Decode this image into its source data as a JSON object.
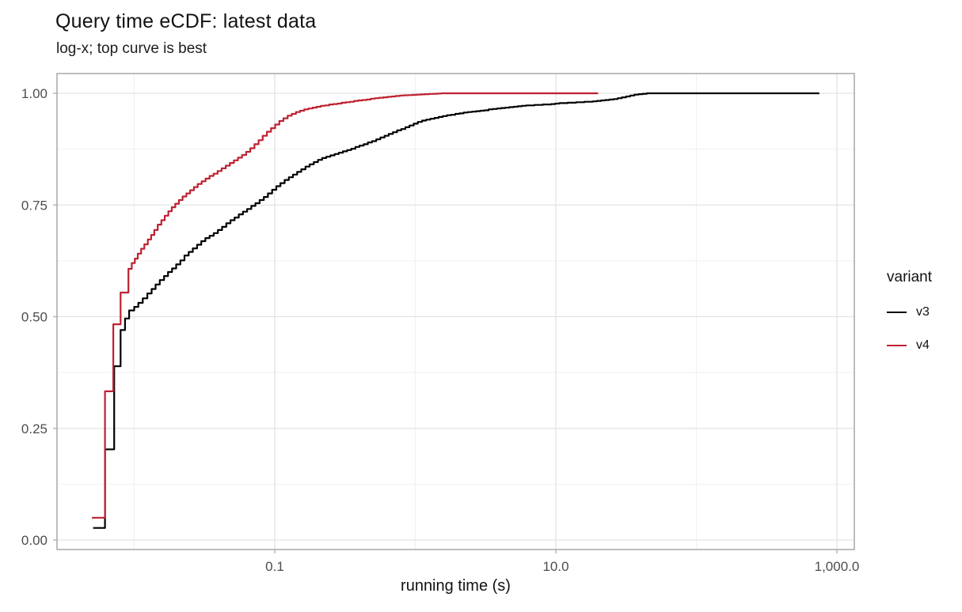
{
  "chart_data": {
    "type": "line",
    "subtype": "ecdf_step",
    "title": "Query time eCDF: latest data",
    "subtitle": "log-x; top curve is best",
    "xlabel": "running time (s)",
    "ylabel": "",
    "x_scale": "log10",
    "xlim": [
      0.00283,
      1330
    ],
    "ylim": [
      0,
      1
    ],
    "grid": true,
    "legend_position": "right",
    "x_axis": {
      "tick_labels": [
        "0.1",
        "10.0",
        "1,000.0"
      ],
      "tick_values": [
        0.1,
        10,
        1000
      ],
      "minor_values": [
        0.01,
        1,
        100
      ]
    },
    "y_axis": {
      "tick_labels": [
        "0.00",
        "0.25",
        "0.50",
        "0.75",
        "1.00"
      ],
      "tick_values": [
        0,
        0.25,
        0.5,
        0.75,
        1
      ],
      "minor_values": [
        0.125,
        0.375,
        0.625,
        0.875
      ]
    },
    "legend": {
      "title": "variant",
      "items": [
        {
          "label": "v3",
          "color": "#000000"
        },
        {
          "label": "v4",
          "color": "#BD2130"
        }
      ]
    },
    "colors": {
      "grid_major": "#E3E3E3",
      "grid_minor": "#F1F1F1",
      "panel_border": "#9A9A9A",
      "tick": "#B3B3B3",
      "axis_text": "#4D4D4D",
      "background": "#FFFFFF"
    },
    "series": [
      {
        "name": "v3",
        "color": "#000000",
        "points": [
          [
            0.0051,
            0.027
          ],
          [
            0.0062,
            0.203
          ],
          [
            0.0072,
            0.389
          ],
          [
            0.008,
            0.47
          ],
          [
            0.0086,
            0.496
          ],
          [
            0.0092,
            0.514
          ],
          [
            0.01,
            0.522
          ],
          [
            0.0107,
            0.531
          ],
          [
            0.0115,
            0.541
          ],
          [
            0.0124,
            0.552
          ],
          [
            0.0133,
            0.562
          ],
          [
            0.0142,
            0.572
          ],
          [
            0.0152,
            0.582
          ],
          [
            0.0163,
            0.591
          ],
          [
            0.0174,
            0.6
          ],
          [
            0.0186,
            0.608
          ],
          [
            0.0199,
            0.617
          ],
          [
            0.0213,
            0.626
          ],
          [
            0.0228,
            0.637
          ],
          [
            0.0244,
            0.645
          ],
          [
            0.0261,
            0.653
          ],
          [
            0.028,
            0.661
          ],
          [
            0.03,
            0.669
          ],
          [
            0.0321,
            0.676
          ],
          [
            0.0344,
            0.681
          ],
          [
            0.0368,
            0.687
          ],
          [
            0.0394,
            0.694
          ],
          [
            0.0422,
            0.701
          ],
          [
            0.0452,
            0.709
          ],
          [
            0.0484,
            0.716
          ],
          [
            0.0518,
            0.722
          ],
          [
            0.0555,
            0.729
          ],
          [
            0.0594,
            0.735
          ],
          [
            0.0636,
            0.741
          ],
          [
            0.0681,
            0.748
          ],
          [
            0.0729,
            0.754
          ],
          [
            0.0781,
            0.761
          ],
          [
            0.0836,
            0.768
          ],
          [
            0.0895,
            0.776
          ],
          [
            0.0958,
            0.784
          ],
          [
            0.1026,
            0.792
          ],
          [
            0.1098,
            0.799
          ],
          [
            0.1176,
            0.806
          ],
          [
            0.1259,
            0.812
          ],
          [
            0.1348,
            0.818
          ],
          [
            0.1443,
            0.824
          ],
          [
            0.1545,
            0.83
          ],
          [
            0.1654,
            0.836
          ],
          [
            0.1771,
            0.841
          ],
          [
            0.1896,
            0.846
          ],
          [
            0.203,
            0.851
          ],
          [
            0.2173,
            0.855
          ],
          [
            0.2326,
            0.858
          ],
          [
            0.249,
            0.861
          ],
          [
            0.2666,
            0.864
          ],
          [
            0.2854,
            0.867
          ],
          [
            0.3055,
            0.87
          ],
          [
            0.3271,
            0.873
          ],
          [
            0.3502,
            0.876
          ],
          [
            0.3749,
            0.88
          ],
          [
            0.4014,
            0.883
          ],
          [
            0.4297,
            0.886
          ],
          [
            0.46,
            0.89
          ],
          [
            0.4925,
            0.893
          ],
          [
            0.5273,
            0.897
          ],
          [
            0.5645,
            0.901
          ],
          [
            0.6043,
            0.905
          ],
          [
            0.647,
            0.909
          ],
          [
            0.6927,
            0.913
          ],
          [
            0.7416,
            0.917
          ],
          [
            0.7939,
            0.92
          ],
          [
            0.85,
            0.924
          ],
          [
            0.91,
            0.928
          ],
          [
            0.9742,
            0.932
          ],
          [
            1.043,
            0.936
          ],
          [
            1.117,
            0.939
          ],
          [
            1.195,
            0.941
          ],
          [
            1.28,
            0.943
          ],
          [
            1.37,
            0.945
          ],
          [
            1.467,
            0.947
          ],
          [
            1.57,
            0.949
          ],
          [
            1.681,
            0.951
          ],
          [
            1.8,
            0.952
          ],
          [
            1.927,
            0.954
          ],
          [
            2.063,
            0.955
          ],
          [
            2.209,
            0.957
          ],
          [
            2.365,
            0.958
          ],
          [
            2.531,
            0.959
          ],
          [
            2.71,
            0.96
          ],
          [
            2.901,
            0.961
          ],
          [
            3.106,
            0.962
          ],
          [
            3.326,
            0.964
          ],
          [
            3.56,
            0.965
          ],
          [
            3.812,
            0.966
          ],
          [
            4.081,
            0.967
          ],
          [
            4.369,
            0.968
          ],
          [
            4.677,
            0.969
          ],
          [
            5.007,
            0.97
          ],
          [
            5.361,
            0.971
          ],
          [
            5.739,
            0.972
          ],
          [
            6.144,
            0.973
          ],
          [
            7.043,
            0.974
          ],
          [
            8.072,
            0.975
          ],
          [
            9.252,
            0.976
          ],
          [
            9.905,
            0.977
          ],
          [
            10.6,
            0.978
          ],
          [
            12.15,
            0.979
          ],
          [
            13.93,
            0.98
          ],
          [
            15.97,
            0.981
          ],
          [
            18.3,
            0.982
          ],
          [
            19.59,
            0.983
          ],
          [
            20.98,
            0.984
          ],
          [
            22.46,
            0.985
          ],
          [
            24.04,
            0.986
          ],
          [
            25.74,
            0.987
          ],
          [
            27.56,
            0.989
          ],
          [
            29.5,
            0.991
          ],
          [
            31.59,
            0.993
          ],
          [
            33.82,
            0.995
          ],
          [
            36.2,
            0.997
          ],
          [
            38.76,
            0.998
          ],
          [
            41.49,
            0.999
          ],
          [
            44.42,
            1.0
          ],
          [
            750.0,
            1.0
          ]
        ]
      },
      {
        "name": "v4",
        "color": "#BD2130",
        "points": [
          [
            0.005,
            0.05
          ],
          [
            0.0062,
            0.333
          ],
          [
            0.0071,
            0.483
          ],
          [
            0.008,
            0.554
          ],
          [
            0.0091,
            0.607
          ],
          [
            0.0096,
            0.62
          ],
          [
            0.0101,
            0.63
          ],
          [
            0.0106,
            0.641
          ],
          [
            0.0112,
            0.652
          ],
          [
            0.0118,
            0.662
          ],
          [
            0.0125,
            0.673
          ],
          [
            0.0132,
            0.683
          ],
          [
            0.0139,
            0.694
          ],
          [
            0.0147,
            0.706
          ],
          [
            0.0156,
            0.716
          ],
          [
            0.0165,
            0.726
          ],
          [
            0.0175,
            0.736
          ],
          [
            0.0185,
            0.745
          ],
          [
            0.0196,
            0.753
          ],
          [
            0.0208,
            0.761
          ],
          [
            0.0221,
            0.769
          ],
          [
            0.0235,
            0.776
          ],
          [
            0.025,
            0.783
          ],
          [
            0.0266,
            0.79
          ],
          [
            0.0283,
            0.797
          ],
          [
            0.0302,
            0.803
          ],
          [
            0.0322,
            0.809
          ],
          [
            0.0344,
            0.815
          ],
          [
            0.0367,
            0.82
          ],
          [
            0.0392,
            0.826
          ],
          [
            0.0419,
            0.832
          ],
          [
            0.0448,
            0.838
          ],
          [
            0.0479,
            0.844
          ],
          [
            0.0512,
            0.85
          ],
          [
            0.0547,
            0.856
          ],
          [
            0.0585,
            0.862
          ],
          [
            0.0626,
            0.869
          ],
          [
            0.067,
            0.877
          ],
          [
            0.0717,
            0.886
          ],
          [
            0.0767,
            0.895
          ],
          [
            0.0821,
            0.905
          ],
          [
            0.0879,
            0.914
          ],
          [
            0.0941,
            0.922
          ],
          [
            0.1007,
            0.93
          ],
          [
            0.1078,
            0.938
          ],
          [
            0.1154,
            0.944
          ],
          [
            0.1235,
            0.95
          ],
          [
            0.1322,
            0.954
          ],
          [
            0.1415,
            0.958
          ],
          [
            0.1515,
            0.961
          ],
          [
            0.1622,
            0.964
          ],
          [
            0.1736,
            0.966
          ],
          [
            0.1858,
            0.968
          ],
          [
            0.1989,
            0.97
          ],
          [
            0.2129,
            0.972
          ],
          [
            0.2279,
            0.973
          ],
          [
            0.244,
            0.975
          ],
          [
            0.2612,
            0.976
          ],
          [
            0.2796,
            0.977
          ],
          [
            0.2993,
            0.979
          ],
          [
            0.3204,
            0.98
          ],
          [
            0.343,
            0.981
          ],
          [
            0.3672,
            0.983
          ],
          [
            0.3931,
            0.984
          ],
          [
            0.4208,
            0.985
          ],
          [
            0.4505,
            0.986
          ],
          [
            0.4823,
            0.988
          ],
          [
            0.5163,
            0.989
          ],
          [
            0.5527,
            0.99
          ],
          [
            0.5917,
            0.991
          ],
          [
            0.6335,
            0.992
          ],
          [
            0.6782,
            0.993
          ],
          [
            0.7261,
            0.994
          ],
          [
            0.7773,
            0.995
          ],
          [
            0.8321,
            0.9955
          ],
          [
            0.8908,
            0.996
          ],
          [
            0.9537,
            0.9965
          ],
          [
            1.021,
            0.997
          ],
          [
            1.093,
            0.9975
          ],
          [
            1.17,
            0.998
          ],
          [
            1.253,
            0.9985
          ],
          [
            1.341,
            0.999
          ],
          [
            1.436,
            0.9995
          ],
          [
            1.537,
            1.0
          ],
          [
            20.0,
            1.0
          ]
        ]
      }
    ]
  }
}
